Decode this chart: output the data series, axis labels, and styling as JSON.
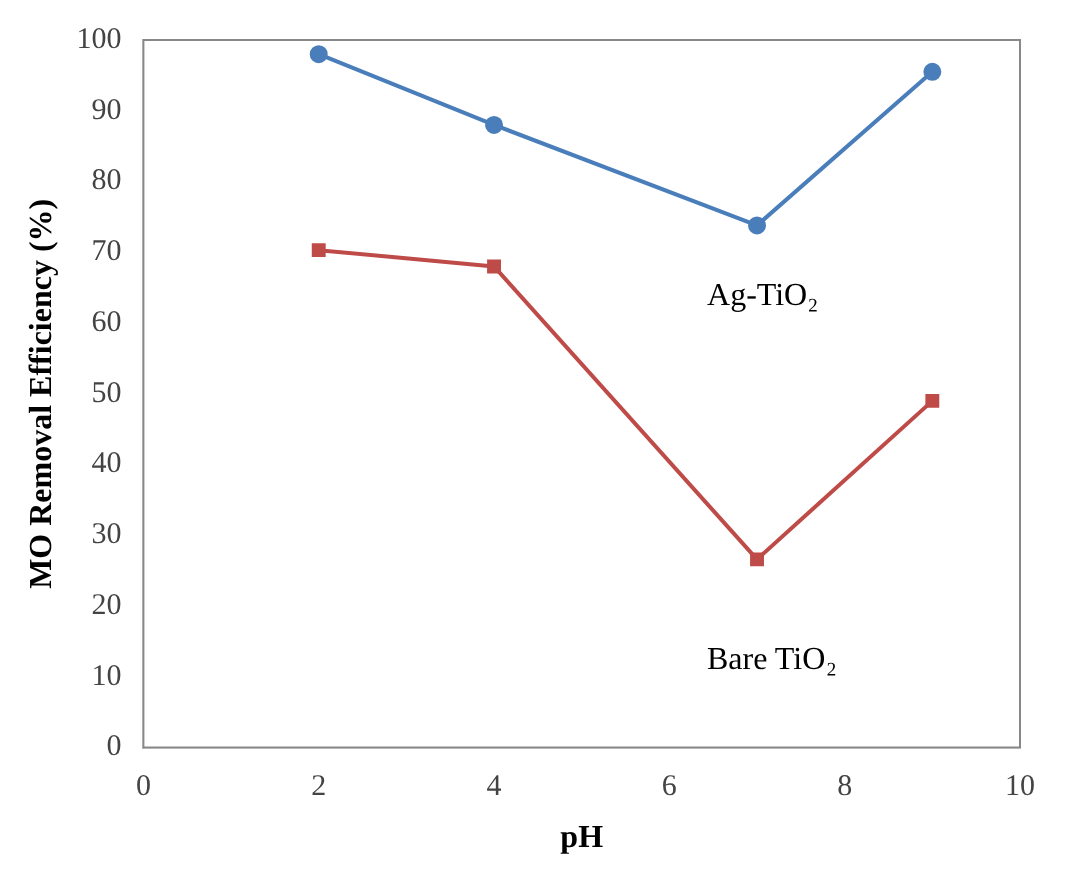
{
  "chart_data": {
    "type": "line",
    "xlabel": "pH",
    "ylabel": "MO Removal Efficiency (%)",
    "x": [
      2,
      4,
      7,
      9
    ],
    "series": [
      {
        "name": "Ag-TiO₂",
        "color": "#4a7ebb",
        "values": [
          98,
          88,
          73.8,
          95.5
        ],
        "marker": "circle"
      },
      {
        "name": "Bare TiO₂",
        "color": "#be4b48",
        "values": [
          70.3,
          68,
          26.6,
          49
        ],
        "marker": "square"
      }
    ],
    "xlim": [
      0,
      10
    ],
    "xticks": [
      0,
      2,
      4,
      6,
      8,
      10
    ],
    "ylim": [
      0,
      100
    ],
    "yticks": [
      0,
      10,
      20,
      30,
      40,
      50,
      60,
      70,
      80,
      90,
      100
    ],
    "grid": false,
    "legend": false
  }
}
